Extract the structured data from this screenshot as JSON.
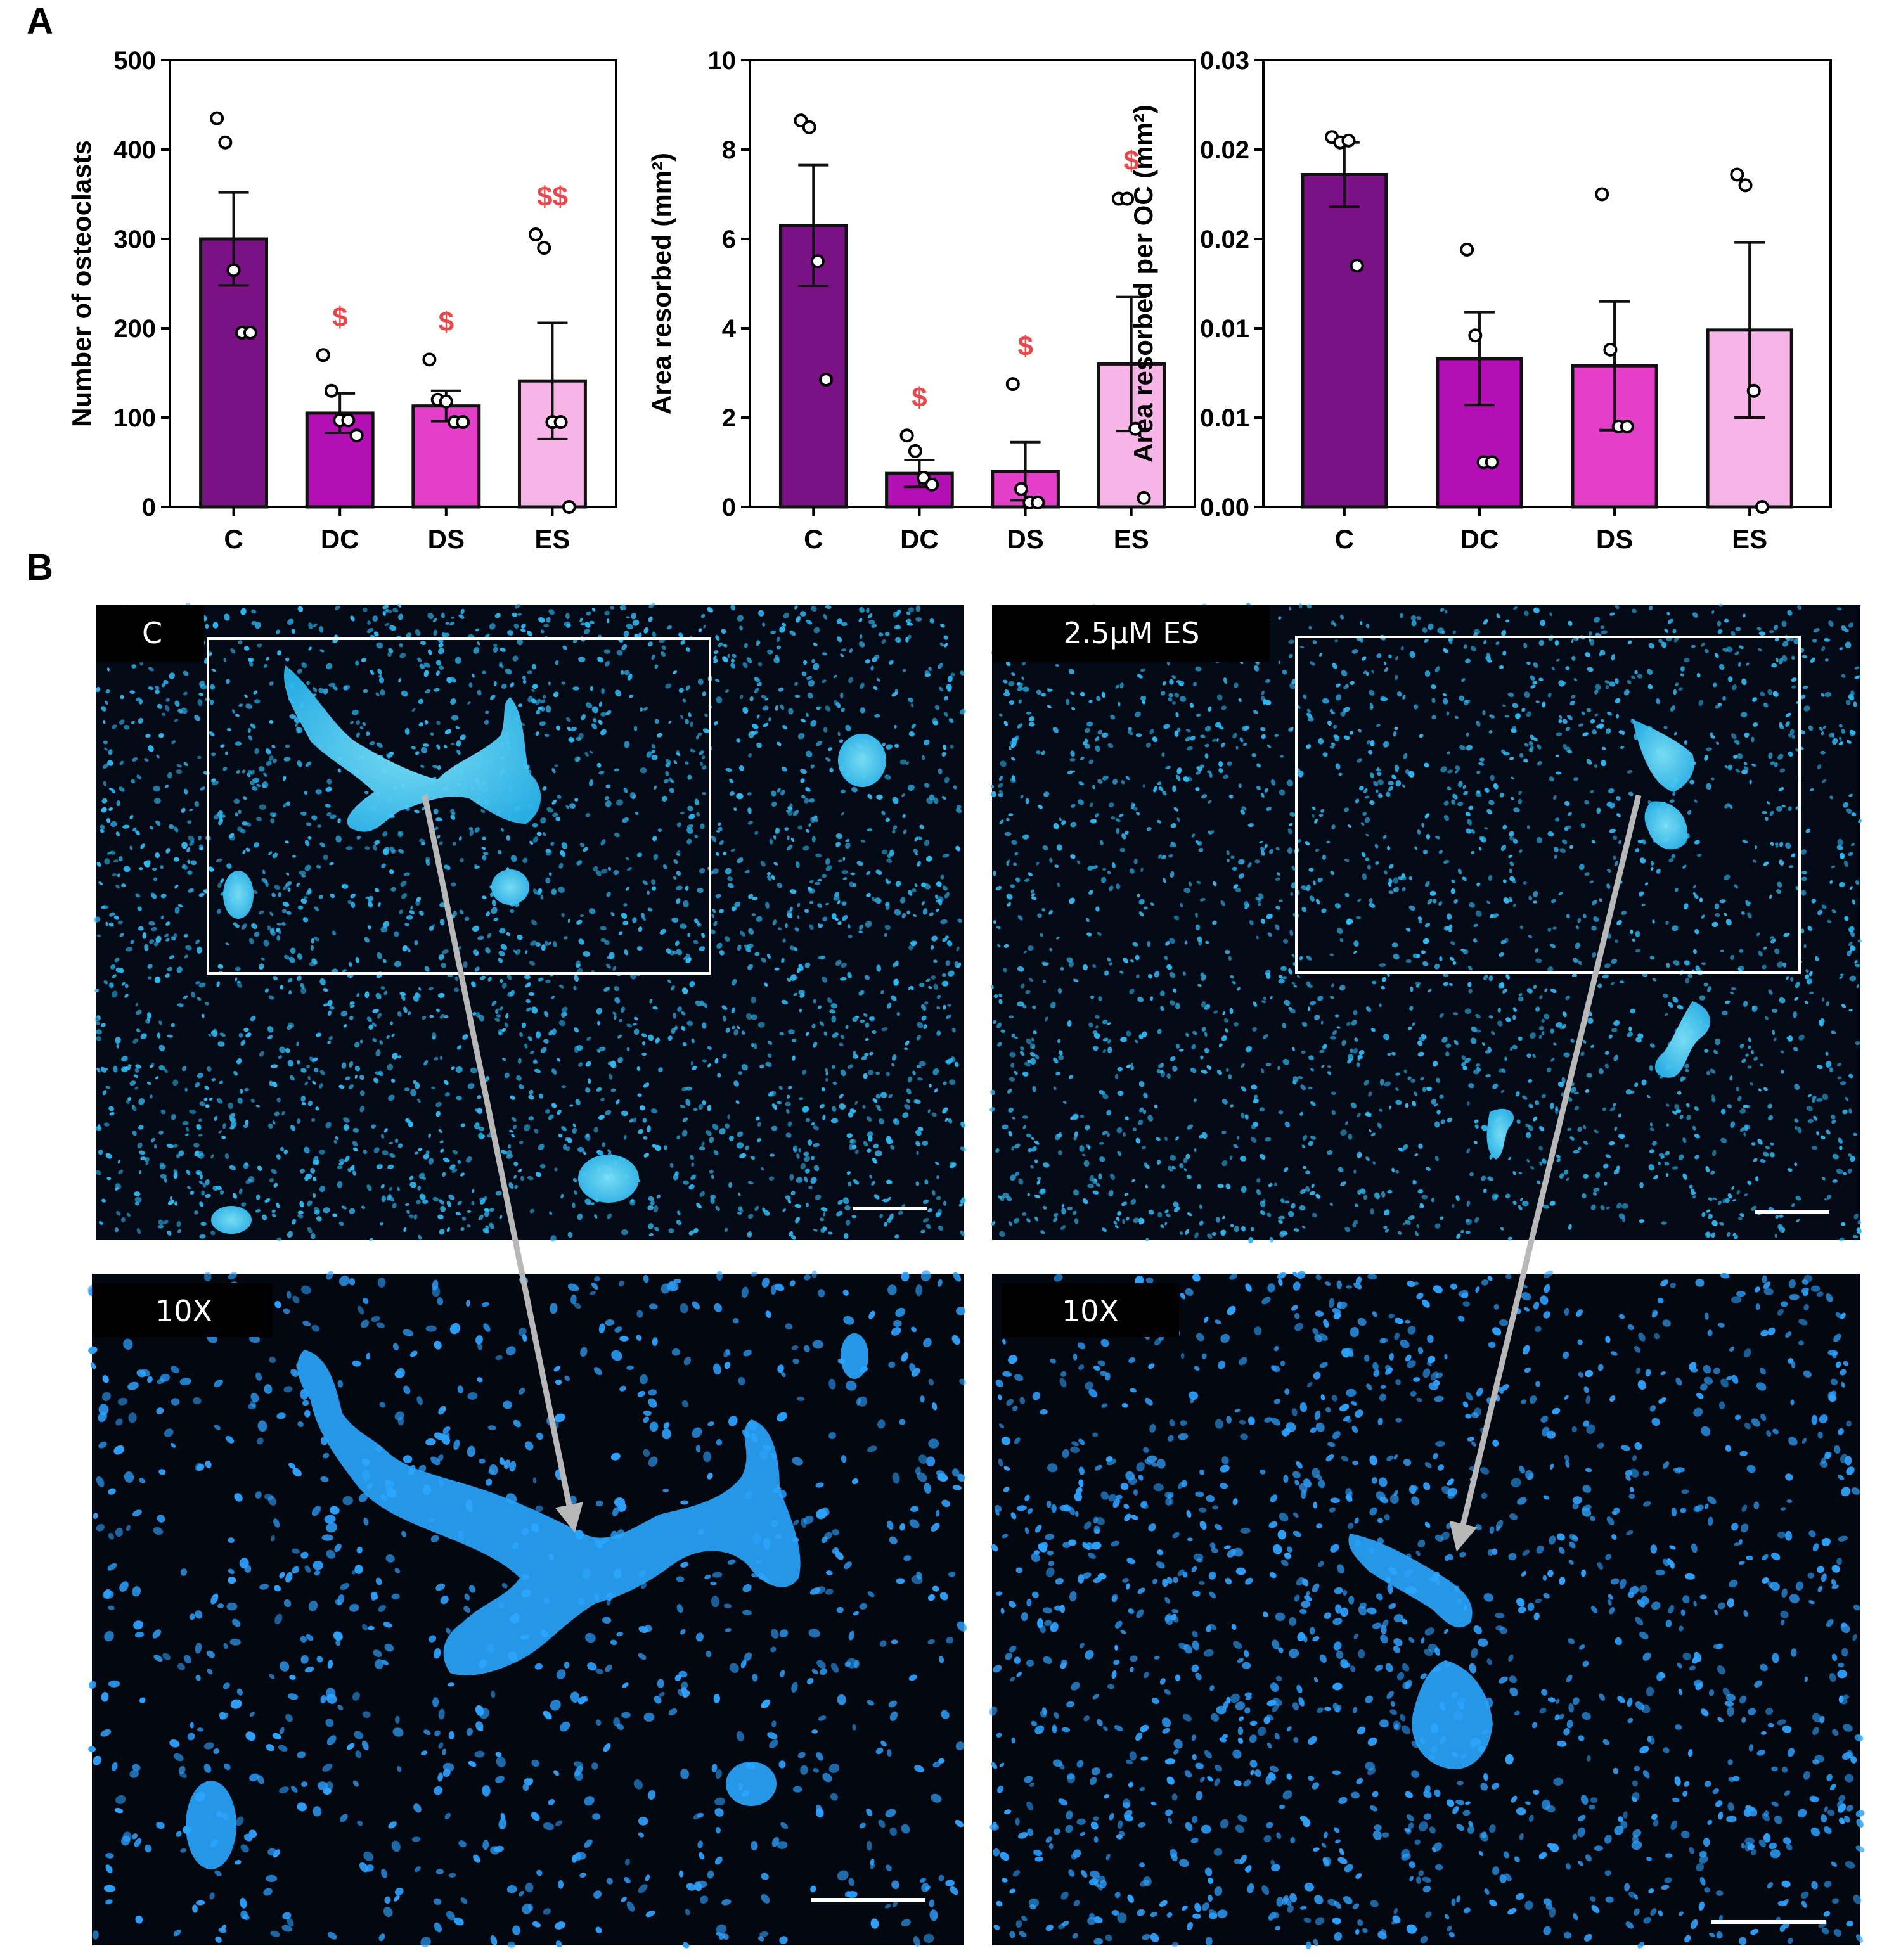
{
  "panels": {
    "a_label": "A",
    "b_label": "B"
  },
  "colors": {
    "C": "#7a1184",
    "DC": "#b40fb4",
    "DS": "#e43fc8",
    "ES": "#f6b5e6",
    "significance": "#e8474c",
    "micrograph_bg": "#020812",
    "nuclei": "#2fb8f2",
    "frame": "#ffffff",
    "arrow": "#b8b8b8"
  },
  "chart_data": [
    {
      "type": "bar",
      "categories": [
        "C",
        "DC",
        "DS",
        "ES"
      ],
      "values": [
        300,
        105,
        113,
        141
      ],
      "sem": [
        52,
        22,
        17,
        65
      ],
      "points": [
        [
          435,
          408,
          265,
          195,
          195
        ],
        [
          170,
          130,
          97,
          97,
          80
        ],
        [
          165,
          120,
          118,
          95,
          95
        ],
        [
          305,
          290,
          95,
          95,
          0
        ]
      ],
      "significance": [
        "",
        "$",
        "$",
        "$$"
      ],
      "ylabel": "Number of osteoclasts",
      "ylim": [
        0,
        500
      ],
      "yticks": [
        "0",
        "100",
        "200",
        "300",
        "400",
        "500"
      ],
      "grid": false
    },
    {
      "type": "bar",
      "categories": [
        "C",
        "DC",
        "DS",
        "ES"
      ],
      "values": [
        6.3,
        0.75,
        0.8,
        3.2
      ],
      "sem": [
        1.35,
        0.3,
        0.65,
        1.5
      ],
      "points": [
        [
          8.65,
          8.5,
          5.5,
          2.85
        ],
        [
          1.6,
          1.25,
          0.65,
          0.5
        ],
        [
          2.75,
          0.4,
          0.1,
          0.1
        ],
        [
          6.9,
          6.9,
          1.75,
          0.2
        ]
      ],
      "significance": [
        "",
        "$",
        "$",
        "$"
      ],
      "ylabel": "Area resorbed (mm²)",
      "ylim": [
        0,
        10
      ],
      "yticks": [
        "0",
        "2",
        "4",
        "6",
        "8",
        "10"
      ],
      "grid": false
    },
    {
      "type": "bar",
      "categories": [
        "C",
        "DC",
        "DS",
        "ES"
      ],
      "values": [
        0.0186,
        0.0083,
        0.0079,
        0.0099
      ],
      "sem": [
        0.0018,
        0.0026,
        0.0036,
        0.0049
      ],
      "points": [
        [
          0.0207,
          0.0204,
          0.0205,
          0.0135
        ],
        [
          0.0144,
          0.0096,
          0.0025,
          0.0025
        ],
        [
          0.0175,
          0.0088,
          0.0045,
          0.0045
        ],
        [
          0.0186,
          0.018,
          0.0065,
          0.0
        ]
      ],
      "significance": [
        "",
        "",
        "",
        ""
      ],
      "ylabel": "Area resorbed per OC (mm²)",
      "ylim": [
        0,
        0.025
      ],
      "yticks": [
        "0.00",
        "0.01",
        "0.01",
        "0.02",
        "0.02",
        "0.03"
      ],
      "grid": false
    }
  ],
  "micrographs": {
    "top_left_label": "C",
    "top_right_label": "2.5μM ES",
    "bottom_left_label": "10X",
    "bottom_right_label": "10X"
  }
}
